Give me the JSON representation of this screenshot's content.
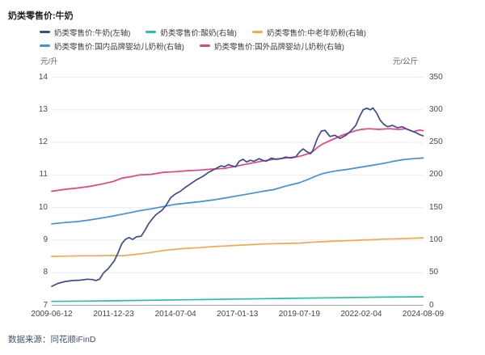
{
  "header": {
    "title": "奶类零售价:牛奶"
  },
  "footer": {
    "source": "数据来源：同花顺iFinD"
  },
  "chart_data": {
    "type": "line",
    "title": "奶类零售价:牛奶",
    "grid": "horizontal-only",
    "legend_position": "top-left",
    "legend_rows": [
      3,
      2
    ],
    "x_axis": {
      "tick_labels": [
        "2009-06-12",
        "2011-12-23",
        "2014-07-04",
        "2017-01-13",
        "2019-07-19",
        "2022-02-04",
        "2024-08-09"
      ],
      "tick_years": [
        2009.45,
        2011.975,
        2014.5,
        2017.025,
        2019.55,
        2022.075,
        2024.6
      ]
    },
    "y_left": {
      "unit": "元/升",
      "min": 7,
      "max": 14,
      "ticks": [
        14,
        13,
        12,
        11,
        10,
        9,
        8,
        7
      ]
    },
    "y_right": {
      "unit": "元/公斤",
      "min": 0,
      "max": 350,
      "ticks": [
        350,
        300,
        250,
        200,
        150,
        100,
        50,
        0
      ]
    },
    "colors": {
      "milk": "#3D4C92",
      "yogurt": "#28C0A7",
      "senior-powder": "#F5A74E",
      "domestic-infant-powder": "#4290E0",
      "foreign-infant-powder": "#E5437F"
    },
    "series": [
      {
        "id": "milk",
        "name": "奶类零售价:牛奶(左轴)",
        "axis": "left",
        "color": "#3D4C92",
        "points": [
          [
            2009.45,
            7.58
          ],
          [
            2009.7,
            7.67
          ],
          [
            2010.0,
            7.73
          ],
          [
            2010.3,
            7.76
          ],
          [
            2010.6,
            7.77
          ],
          [
            2010.9,
            7.8
          ],
          [
            2011.1,
            7.79
          ],
          [
            2011.25,
            7.76
          ],
          [
            2011.4,
            7.8
          ],
          [
            2011.57,
            8.0
          ],
          [
            2011.75,
            8.12
          ],
          [
            2012.0,
            8.36
          ],
          [
            2012.15,
            8.6
          ],
          [
            2012.3,
            8.88
          ],
          [
            2012.45,
            9.02
          ],
          [
            2012.6,
            9.08
          ],
          [
            2012.75,
            9.02
          ],
          [
            2012.9,
            9.1
          ],
          [
            2013.1,
            9.12
          ],
          [
            2013.25,
            9.3
          ],
          [
            2013.4,
            9.5
          ],
          [
            2013.55,
            9.65
          ],
          [
            2013.7,
            9.78
          ],
          [
            2013.95,
            9.92
          ],
          [
            2014.1,
            10.05
          ],
          [
            2014.3,
            10.3
          ],
          [
            2014.5,
            10.42
          ],
          [
            2014.7,
            10.5
          ],
          [
            2014.9,
            10.62
          ],
          [
            2015.1,
            10.72
          ],
          [
            2015.35,
            10.85
          ],
          [
            2015.6,
            10.95
          ],
          [
            2015.85,
            11.08
          ],
          [
            2016.1,
            11.18
          ],
          [
            2016.35,
            11.28
          ],
          [
            2016.5,
            11.25
          ],
          [
            2016.65,
            11.32
          ],
          [
            2016.8,
            11.28
          ],
          [
            2016.95,
            11.25
          ],
          [
            2017.1,
            11.42
          ],
          [
            2017.25,
            11.48
          ],
          [
            2017.4,
            11.4
          ],
          [
            2017.55,
            11.45
          ],
          [
            2017.7,
            11.42
          ],
          [
            2017.9,
            11.5
          ],
          [
            2018.05,
            11.45
          ],
          [
            2018.2,
            11.42
          ],
          [
            2018.4,
            11.52
          ],
          [
            2018.6,
            11.48
          ],
          [
            2018.8,
            11.5
          ],
          [
            2019.0,
            11.55
          ],
          [
            2019.2,
            11.52
          ],
          [
            2019.4,
            11.55
          ],
          [
            2019.55,
            11.7
          ],
          [
            2019.7,
            11.8
          ],
          [
            2019.85,
            11.72
          ],
          [
            2020.0,
            11.65
          ],
          [
            2020.1,
            11.75
          ],
          [
            2020.3,
            12.15
          ],
          [
            2020.45,
            12.35
          ],
          [
            2020.6,
            12.37
          ],
          [
            2020.8,
            12.18
          ],
          [
            2021.0,
            12.22
          ],
          [
            2021.2,
            12.12
          ],
          [
            2021.45,
            12.22
          ],
          [
            2021.65,
            12.35
          ],
          [
            2021.85,
            12.52
          ],
          [
            2022.0,
            12.78
          ],
          [
            2022.15,
            13.0
          ],
          [
            2022.3,
            13.05
          ],
          [
            2022.45,
            13.0
          ],
          [
            2022.55,
            13.06
          ],
          [
            2022.7,
            12.9
          ],
          [
            2022.85,
            12.68
          ],
          [
            2023.0,
            12.55
          ],
          [
            2023.15,
            12.48
          ],
          [
            2023.35,
            12.52
          ],
          [
            2023.55,
            12.45
          ],
          [
            2023.75,
            12.48
          ],
          [
            2023.95,
            12.4
          ],
          [
            2024.1,
            12.36
          ],
          [
            2024.3,
            12.3
          ],
          [
            2024.45,
            12.24
          ],
          [
            2024.6,
            12.2
          ]
        ]
      },
      {
        "id": "yogurt",
        "name": "奶类零售价:酸奶(右轴)",
        "axis": "right",
        "color": "#28C0A7",
        "points": [
          [
            2009.45,
            6
          ],
          [
            2011.0,
            6.5
          ],
          [
            2013.0,
            7.5
          ],
          [
            2015.0,
            8.5
          ],
          [
            2017.04,
            9.5
          ],
          [
            2019.0,
            10.5
          ],
          [
            2021.0,
            11.5
          ],
          [
            2023.0,
            12.5
          ],
          [
            2024.6,
            13
          ]
        ]
      },
      {
        "id": "senior-powder",
        "name": "奶类零售价:中老年奶粉(右轴)",
        "axis": "right",
        "color": "#F5A74E",
        "points": [
          [
            2009.45,
            75
          ],
          [
            2010.0,
            75.5
          ],
          [
            2010.7,
            76
          ],
          [
            2011.3,
            76
          ],
          [
            2011.96,
            76.5
          ],
          [
            2012.3,
            76
          ],
          [
            2012.7,
            77.5
          ],
          [
            2013.1,
            79
          ],
          [
            2013.5,
            81
          ],
          [
            2014.0,
            84
          ],
          [
            2014.5,
            86
          ],
          [
            2015.0,
            87.5
          ],
          [
            2015.5,
            88.5
          ],
          [
            2016.0,
            90
          ],
          [
            2016.5,
            91
          ],
          [
            2017.04,
            92
          ],
          [
            2017.5,
            93
          ],
          [
            2018.0,
            94
          ],
          [
            2018.5,
            94.5
          ],
          [
            2019.0,
            95
          ],
          [
            2019.55,
            95.5
          ],
          [
            2020.0,
            96.5
          ],
          [
            2020.5,
            97.5
          ],
          [
            2021.0,
            98.5
          ],
          [
            2021.5,
            99
          ],
          [
            2022.09,
            100
          ],
          [
            2022.5,
            100.5
          ],
          [
            2023.0,
            101.5
          ],
          [
            2023.5,
            102
          ],
          [
            2024.0,
            102.5
          ],
          [
            2024.6,
            103.5
          ]
        ]
      },
      {
        "id": "domestic-infant-powder",
        "name": "奶类零售价:国内品牌婴幼儿奶粉(右轴)",
        "axis": "right",
        "color": "#4290E0",
        "points": [
          [
            2009.45,
            125
          ],
          [
            2010.0,
            127
          ],
          [
            2010.5,
            128.5
          ],
          [
            2011.0,
            131
          ],
          [
            2011.5,
            134
          ],
          [
            2011.96,
            137
          ],
          [
            2012.3,
            139.5
          ],
          [
            2012.7,
            142.5
          ],
          [
            2013.0,
            145
          ],
          [
            2013.5,
            148
          ],
          [
            2014.0,
            151.5
          ],
          [
            2014.5,
            155
          ],
          [
            2015.0,
            157
          ],
          [
            2015.5,
            159
          ],
          [
            2016.0,
            161.5
          ],
          [
            2016.5,
            164.5
          ],
          [
            2017.04,
            168
          ],
          [
            2017.5,
            171
          ],
          [
            2018.0,
            174.5
          ],
          [
            2018.5,
            177.5
          ],
          [
            2019.0,
            183
          ],
          [
            2019.55,
            188
          ],
          [
            2019.9,
            193
          ],
          [
            2020.2,
            198
          ],
          [
            2020.5,
            202
          ],
          [
            2020.8,
            204.5
          ],
          [
            2021.1,
            206.5
          ],
          [
            2021.5,
            208.5
          ],
          [
            2021.9,
            211
          ],
          [
            2022.3,
            213.5
          ],
          [
            2022.7,
            216
          ],
          [
            2023.0,
            218
          ],
          [
            2023.4,
            221
          ],
          [
            2023.8,
            223.5
          ],
          [
            2024.2,
            225
          ],
          [
            2024.6,
            226
          ]
        ]
      },
      {
        "id": "foreign-infant-powder",
        "name": "奶类零售价:国外品牌婴幼儿奶粉(右轴)",
        "axis": "right",
        "color": "#E5437F",
        "points": [
          [
            2009.45,
            175
          ],
          [
            2010.0,
            178
          ],
          [
            2010.5,
            180
          ],
          [
            2011.0,
            182.5
          ],
          [
            2011.5,
            186
          ],
          [
            2011.96,
            190
          ],
          [
            2012.3,
            195
          ],
          [
            2012.7,
            197.5
          ],
          [
            2013.0,
            200
          ],
          [
            2013.5,
            201
          ],
          [
            2014.0,
            204
          ],
          [
            2014.5,
            205
          ],
          [
            2015.0,
            206.5
          ],
          [
            2015.5,
            207.5
          ],
          [
            2016.0,
            209
          ],
          [
            2016.5,
            210
          ],
          [
            2017.04,
            214
          ],
          [
            2017.5,
            217.5
          ],
          [
            2018.0,
            221
          ],
          [
            2018.5,
            224
          ],
          [
            2019.0,
            226
          ],
          [
            2019.55,
            228.5
          ],
          [
            2019.9,
            232.5
          ],
          [
            2020.1,
            236
          ],
          [
            2020.3,
            242.5
          ],
          [
            2020.5,
            247.5
          ],
          [
            2020.7,
            251
          ],
          [
            2021.0,
            256
          ],
          [
            2021.3,
            261
          ],
          [
            2021.6,
            265
          ],
          [
            2021.9,
            268.5
          ],
          [
            2022.09,
            270
          ],
          [
            2022.4,
            271
          ],
          [
            2022.8,
            270
          ],
          [
            2023.2,
            271
          ],
          [
            2023.6,
            270
          ],
          [
            2023.9,
            271
          ],
          [
            2024.2,
            266.5
          ],
          [
            2024.45,
            269
          ],
          [
            2024.6,
            268
          ]
        ]
      }
    ]
  }
}
